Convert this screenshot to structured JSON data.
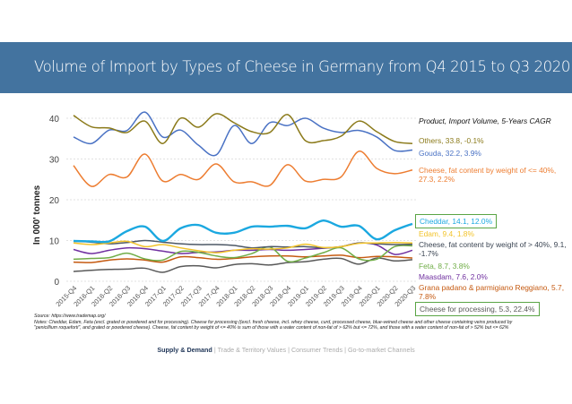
{
  "header": {
    "title": "Volume of Import by Types of Cheese in Germany from Q4 2015 to Q3 2020"
  },
  "chart_data": {
    "type": "line",
    "ylabel": "In 000' tonnes",
    "ylim": [
      0,
      40
    ],
    "yticks": [
      0,
      10,
      20,
      30,
      40
    ],
    "grid": true,
    "legend_title": "Product, Import Volume, 5-Years CAGR",
    "legend_placement": "right",
    "categories": [
      "2015-Q4",
      "2016-Q1",
      "2016-Q2",
      "2016-Q3",
      "2016-Q4",
      "2017-Q1",
      "2017-Q2",
      "2017-Q3",
      "2017-Q4",
      "2018-Q1",
      "2018-Q2",
      "2018-Q3",
      "2018-Q4",
      "2019-Q1",
      "2019-Q2",
      "2019-Q3",
      "2019-Q4",
      "2020-Q1",
      "2020-Q2",
      "2020-Q3"
    ],
    "series": [
      {
        "name": "Others",
        "label": "Others, 33.8, -0.1%",
        "color": "#8b7a1a",
        "values": [
          40.7,
          37.9,
          37.6,
          36.5,
          39.3,
          33.8,
          40,
          37.8,
          41.1,
          38.9,
          36.7,
          36.5,
          40.9,
          34.5,
          34.5,
          35.6,
          39.3,
          36.7,
          34.3,
          33.8
        ]
      },
      {
        "name": "Gouda",
        "label": "Gouda, 32.2, 3.9%",
        "color": "#4a72c4",
        "values": [
          35.4,
          33.8,
          37.1,
          37,
          41.5,
          35.4,
          37.1,
          33.4,
          31,
          38.2,
          33.8,
          38.9,
          38.2,
          40,
          37.6,
          36.5,
          37,
          35.4,
          32.1,
          32.2
        ]
      },
      {
        "name": "Cheese, fat content by weight of <= 40%",
        "label": "Cheese, fat content by weight of <= 40%, 27.3, 2.2%",
        "color": "#ed7d31",
        "values": [
          28.4,
          23.3,
          26.2,
          25.6,
          31.2,
          24.6,
          26.2,
          25,
          28.8,
          24.4,
          24.4,
          23.5,
          28.6,
          24.6,
          25,
          25.6,
          31.9,
          27.7,
          26.4,
          27.3
        ]
      },
      {
        "name": "Cheddar",
        "label": "Cheddar, 14.1, 12.0%",
        "color": "#1ba8e0",
        "boxed": true,
        "values": [
          9.9,
          9.8,
          9.8,
          12.3,
          13.4,
          9.9,
          13,
          13.8,
          11.9,
          11.9,
          13.4,
          13.4,
          13.6,
          13,
          14.9,
          13.4,
          13.6,
          10.3,
          12.5,
          14.1
        ]
      },
      {
        "name": "Edam",
        "label": "Edam, 9.4, 1.8%",
        "color": "#f2c32a",
        "values": [
          9.4,
          9.0,
          9.4,
          9.8,
          8.5,
          9.0,
          8.2,
          7.5,
          7.0,
          7.6,
          8.0,
          7.9,
          8.2,
          9.1,
          8.3,
          8.5,
          9.3,
          9.4,
          9.5,
          9.4
        ]
      },
      {
        "name": "Cheese, fat content by weight of > 40%",
        "label": "Cheese, fat content by weight of > 40%, 9.1, -1.7%",
        "color": "#4d5866",
        "values": [
          9.8,
          9.6,
          9.2,
          9.5,
          10,
          9.6,
          9.2,
          9,
          9,
          8.8,
          8.2,
          8.5,
          8.4,
          8.5,
          8.2,
          8.5,
          9.4,
          9.2,
          9.0,
          9.1
        ]
      },
      {
        "name": "Feta",
        "label": "Feta, 8.7, 3.8%",
        "color": "#70ad47",
        "values": [
          5.4,
          5.6,
          5.8,
          6.9,
          5.5,
          5.2,
          7.3,
          7.1,
          6.2,
          5.8,
          6.8,
          8.4,
          4.9,
          5.7,
          7.0,
          8.2,
          5.5,
          5.4,
          8.5,
          8.7
        ]
      },
      {
        "name": "Maasdam",
        "label": "Maasdam, 7.6, 2.0%",
        "color": "#7030a0",
        "values": [
          7.8,
          6.8,
          7.6,
          8.2,
          8.0,
          7.4,
          6.8,
          7.1,
          7.2,
          7.6,
          7.6,
          7.8,
          7.6,
          7.8,
          8.1,
          8.5,
          9.4,
          8.9,
          6.6,
          7.6
        ]
      },
      {
        "name": "Grana padano & parmigiano Reggiano",
        "label": "Grana padano & parmigiano Reggiano, 5.7, 7.8%",
        "color": "#c55a11",
        "values": [
          4.7,
          4.6,
          5.2,
          5.5,
          5.2,
          4.7,
          6.0,
          5.8,
          5.4,
          5.6,
          6.0,
          6.2,
          6.2,
          6.0,
          6.2,
          6.4,
          5.8,
          6.1,
          6.0,
          5.7
        ]
      },
      {
        "name": "Cheese for processing",
        "label": "Cheese for processing, 5.3, 22.4%",
        "color": "#595959",
        "boxed": true,
        "values": [
          2.4,
          2.7,
          2.9,
          3.0,
          3.2,
          2.2,
          3.6,
          3.8,
          3.3,
          4.1,
          4.3,
          4.0,
          4.6,
          4.8,
          5.4,
          5.6,
          4.2,
          5.7,
          5.0,
          5.3
        ]
      }
    ]
  },
  "notes": {
    "source": "Source: https://www.trademap.org/",
    "text": "Notes: Cheddar, Edam, Feta (excl. grated or powdered and for processing). Cheese for processing ((excl. fresh cheese, incl. whey cheese, curd, processed cheese, blue-veined cheese and other cheese containing veins produced by \"penicillium roqueforti\", and grated or powdered cheese). Cheese, fat content by weight of <= 40% is sum of those with a water content of non-fat of > 62% but <= 72%, and those with a water content of non-fat of > 52% but <= 62%"
  },
  "footer": {
    "active": "Supply & Demand",
    "sep": " | ",
    "others": "Trade & Territory Values | Consumer Trends | Go-to-market Channels"
  }
}
